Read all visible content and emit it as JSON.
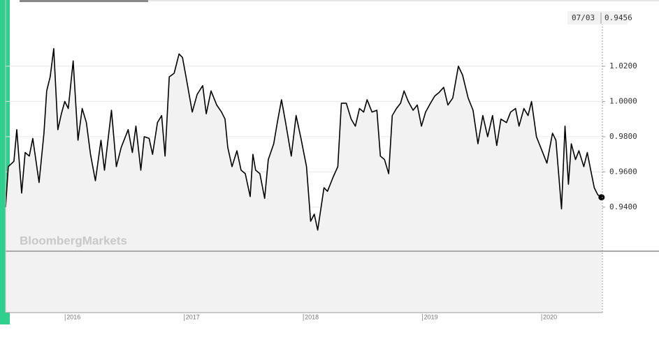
{
  "chart_data": {
    "type": "line",
    "watermark": "BloombergMarkets",
    "end_label": {
      "date": "07/03",
      "value": 0.9456
    },
    "color": "#000000",
    "fill": "#f2f2f2",
    "grid": true,
    "xlim": [
      2015.5,
      2020.51
    ],
    "xticks": [
      2016,
      2017,
      2018,
      2019,
      2020
    ],
    "ylim": [
      0.915,
      1.0576
    ],
    "yticks": [
      {
        "value": 0.94,
        "label": "0.9400"
      },
      {
        "value": 0.96,
        "label": "0.9600"
      },
      {
        "value": 0.98,
        "label": "0.9800"
      },
      {
        "value": 1.0,
        "label": "1.0000"
      },
      {
        "value": 1.02,
        "label": "1.0200"
      }
    ],
    "x": [
      2015.5,
      2015.523,
      2015.57,
      2015.594,
      2015.635,
      2015.664,
      2015.699,
      2015.728,
      2015.781,
      2015.822,
      2015.845,
      2015.874,
      2015.904,
      2015.939,
      2015.968,
      2015.997,
      2016.026,
      2016.067,
      2016.108,
      2016.143,
      2016.178,
      2016.213,
      2016.254,
      2016.301,
      2016.33,
      2016.389,
      2016.43,
      2016.471,
      2016.529,
      2016.564,
      2016.594,
      2016.635,
      2016.664,
      2016.705,
      2016.734,
      2016.775,
      2016.81,
      2016.839,
      2016.874,
      2016.915,
      2016.956,
      2016.985,
      2017.015,
      2017.067,
      2017.108,
      2017.155,
      2017.184,
      2017.225,
      2017.272,
      2017.313,
      2017.342,
      2017.365,
      2017.401,
      2017.442,
      2017.477,
      2017.512,
      2017.553,
      2017.576,
      2017.599,
      2017.635,
      2017.675,
      2017.705,
      2017.751,
      2017.781,
      2017.816,
      2017.851,
      2017.898,
      2017.939,
      2017.98,
      2018.026,
      2018.061,
      2018.091,
      2018.12,
      2018.173,
      2018.202,
      2018.249,
      2018.289,
      2018.319,
      2018.36,
      2018.401,
      2018.436,
      2018.471,
      2018.506,
      2018.535,
      2018.576,
      2018.617,
      2018.646,
      2018.681,
      2018.716,
      2018.746,
      2018.781,
      2018.816,
      2018.845,
      2018.88,
      2018.921,
      2018.956,
      2018.991,
      2019.026,
      2019.067,
      2019.102,
      2019.137,
      2019.178,
      2019.213,
      2019.254,
      2019.301,
      2019.336,
      2019.383,
      2019.424,
      2019.465,
      2019.506,
      2019.547,
      2019.588,
      2019.623,
      2019.658,
      2019.705,
      2019.74,
      2019.781,
      2019.81,
      2019.851,
      2019.886,
      2019.915,
      2019.956,
      2020.003,
      2020.044,
      2020.091,
      2020.12,
      2020.167,
      2020.196,
      2020.225,
      2020.249,
      2020.284,
      2020.313,
      2020.354,
      2020.383,
      2020.412,
      2020.442,
      2020.471,
      2020.503
    ],
    "values": [
      0.94,
      0.963,
      0.966,
      0.984,
      0.948,
      0.971,
      0.969,
      0.979,
      0.954,
      0.982,
      1.006,
      1.014,
      1.03,
      0.984,
      0.993,
      1.0,
      0.996,
      1.023,
      0.978,
      0.996,
      0.988,
      0.97,
      0.955,
      0.978,
      0.961,
      0.995,
      0.963,
      0.974,
      0.984,
      0.971,
      0.986,
      0.961,
      0.98,
      0.979,
      0.97,
      0.988,
      0.992,
      0.969,
      1.014,
      1.016,
      1.027,
      1.025,
      1.014,
      0.994,
      1.004,
      1.009,
      0.993,
      1.006,
      0.998,
      0.994,
      0.99,
      0.974,
      0.963,
      0.972,
      0.961,
      0.959,
      0.946,
      0.97,
      0.961,
      0.959,
      0.945,
      0.967,
      0.976,
      0.988,
      1.001,
      0.988,
      0.969,
      0.992,
      0.979,
      0.963,
      0.932,
      0.936,
      0.927,
      0.951,
      0.949,
      0.957,
      0.963,
      0.999,
      0.999,
      0.99,
      0.986,
      0.996,
      0.994,
      1.001,
      0.994,
      0.995,
      0.969,
      0.967,
      0.959,
      0.992,
      0.996,
      0.999,
      1.006,
      1.0,
      0.995,
      0.998,
      0.986,
      0.994,
      0.999,
      1.003,
      1.005,
      1.008,
      0.998,
      1.002,
      1.02,
      1.015,
      1.002,
      0.995,
      0.976,
      0.992,
      0.98,
      0.992,
      0.975,
      0.99,
      0.988,
      0.994,
      0.996,
      0.986,
      0.996,
      0.992,
      1.0,
      0.98,
      0.972,
      0.965,
      0.982,
      0.978,
      0.939,
      0.986,
      0.953,
      0.976,
      0.967,
      0.972,
      0.963,
      0.971,
      0.961,
      0.951,
      0.947,
      0.9456
    ]
  }
}
